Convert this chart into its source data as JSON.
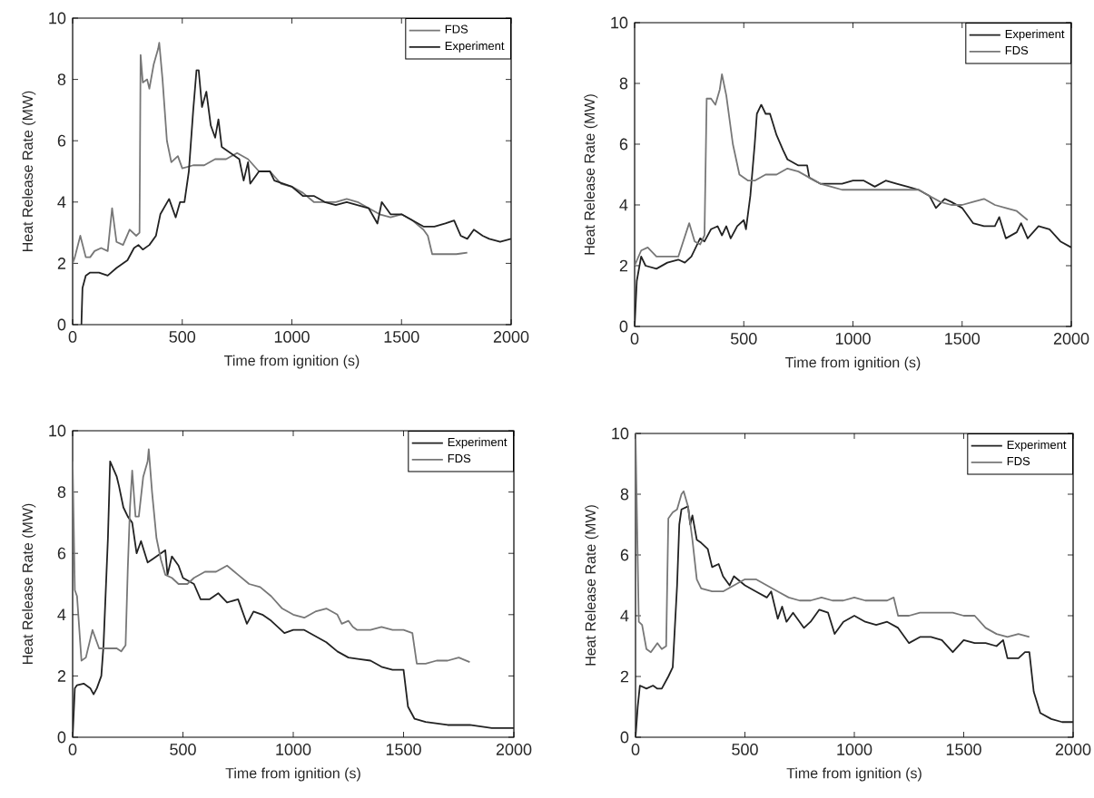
{
  "chart_data": [
    {
      "type": "line",
      "xlabel": "Time from ignition (s)",
      "ylabel": "Heat Release Rate (MW)",
      "xlim": [
        0,
        2000
      ],
      "ylim": [
        0,
        10
      ],
      "xticks": [
        0,
        500,
        1000,
        1500,
        2000
      ],
      "yticks": [
        0,
        2,
        4,
        6,
        8,
        10
      ],
      "legend": "top right",
      "series": [
        {
          "name": "FDS",
          "color": "#777777",
          "x": [
            0,
            10,
            35,
            60,
            80,
            100,
            130,
            160,
            180,
            200,
            230,
            260,
            290,
            305,
            310,
            320,
            340,
            350,
            370,
            390,
            395,
            410,
            430,
            450,
            480,
            500,
            550,
            600,
            650,
            700,
            750,
            800,
            850,
            900,
            950,
            1000,
            1050,
            1100,
            1150,
            1200,
            1250,
            1300,
            1350,
            1400,
            1450,
            1500,
            1550,
            1600,
            1620,
            1640,
            1700,
            1750,
            1800
          ],
          "values": [
            2.0,
            2.2,
            2.9,
            2.2,
            2.2,
            2.4,
            2.5,
            2.4,
            3.8,
            2.7,
            2.6,
            3.1,
            2.9,
            3.0,
            8.8,
            7.9,
            8.0,
            7.7,
            8.5,
            9.0,
            9.2,
            8.0,
            6.0,
            5.3,
            5.5,
            5.1,
            5.2,
            5.2,
            5.4,
            5.4,
            5.6,
            5.4,
            5.0,
            5.0,
            4.6,
            4.5,
            4.3,
            4.0,
            4.0,
            4.0,
            4.1,
            4.0,
            3.8,
            3.6,
            3.5,
            3.6,
            3.4,
            3.1,
            2.9,
            2.3,
            2.3,
            2.3,
            2.35
          ]
        },
        {
          "name": "Experiment",
          "color": "#222222",
          "x": [
            40,
            45,
            60,
            80,
            120,
            160,
            200,
            250,
            280,
            300,
            320,
            350,
            380,
            400,
            440,
            470,
            490,
            510,
            530,
            550,
            565,
            575,
            590,
            610,
            630,
            650,
            665,
            680,
            720,
            760,
            780,
            800,
            810,
            850,
            900,
            920,
            1000,
            1050,
            1100,
            1150,
            1200,
            1250,
            1300,
            1350,
            1390,
            1410,
            1450,
            1500,
            1550,
            1600,
            1650,
            1700,
            1740,
            1770,
            1800,
            1830,
            1870,
            1900,
            1950,
            2000
          ],
          "values": [
            0,
            1.2,
            1.6,
            1.7,
            1.7,
            1.6,
            1.85,
            2.1,
            2.5,
            2.6,
            2.45,
            2.6,
            2.9,
            3.6,
            4.1,
            3.5,
            4.0,
            4.0,
            5.0,
            7.0,
            8.3,
            8.3,
            7.1,
            7.6,
            6.5,
            6.1,
            6.7,
            5.8,
            5.6,
            5.4,
            4.7,
            5.3,
            4.6,
            5.0,
            5.0,
            4.7,
            4.5,
            4.2,
            4.2,
            4.0,
            3.9,
            4.0,
            3.9,
            3.8,
            3.3,
            4.0,
            3.6,
            3.6,
            3.4,
            3.2,
            3.2,
            3.3,
            3.4,
            2.9,
            2.8,
            3.1,
            2.9,
            2.8,
            2.7,
            2.8
          ]
        }
      ]
    },
    {
      "type": "line",
      "xlabel": "Time from ignition (s)",
      "ylabel": "Heat Release Rate (MW)",
      "xlim": [
        0,
        2000
      ],
      "ylim": [
        0,
        10
      ],
      "xticks": [
        0,
        500,
        1000,
        1500,
        2000
      ],
      "yticks": [
        0,
        2,
        4,
        6,
        8,
        10
      ],
      "legend": "top right",
      "series": [
        {
          "name": "Experiment",
          "color": "#222222",
          "x": [
            0,
            10,
            30,
            50,
            100,
            150,
            200,
            230,
            260,
            300,
            320,
            350,
            380,
            400,
            420,
            440,
            470,
            500,
            510,
            530,
            550,
            560,
            580,
            600,
            620,
            650,
            680,
            700,
            750,
            790,
            800,
            850,
            900,
            950,
            1000,
            1050,
            1100,
            1150,
            1200,
            1250,
            1300,
            1350,
            1380,
            1420,
            1450,
            1500,
            1550,
            1600,
            1650,
            1670,
            1700,
            1750,
            1770,
            1800,
            1850,
            1900,
            1950,
            2000
          ],
          "values": [
            0,
            1.5,
            2.3,
            2.0,
            1.9,
            2.1,
            2.2,
            2.1,
            2.3,
            2.9,
            2.8,
            3.2,
            3.3,
            3.0,
            3.3,
            2.9,
            3.3,
            3.5,
            3.2,
            4.3,
            6.0,
            7.0,
            7.3,
            7.0,
            7.0,
            6.3,
            5.8,
            5.5,
            5.3,
            5.3,
            4.9,
            4.7,
            4.7,
            4.7,
            4.8,
            4.8,
            4.6,
            4.8,
            4.7,
            4.6,
            4.5,
            4.3,
            3.9,
            4.2,
            4.1,
            3.9,
            3.4,
            3.3,
            3.3,
            3.6,
            2.9,
            3.1,
            3.4,
            2.9,
            3.3,
            3.2,
            2.8,
            2.6
          ]
        },
        {
          "name": "FDS",
          "color": "#777777",
          "x": [
            0,
            30,
            60,
            100,
            150,
            200,
            250,
            275,
            300,
            320,
            330,
            350,
            370,
            390,
            400,
            420,
            450,
            480,
            520,
            550,
            600,
            650,
            700,
            750,
            800,
            850,
            900,
            950,
            1000,
            1100,
            1200,
            1300,
            1350,
            1400,
            1450,
            1500,
            1550,
            1600,
            1650,
            1700,
            1750,
            1800
          ],
          "values": [
            2.0,
            2.5,
            2.6,
            2.3,
            2.3,
            2.3,
            3.4,
            2.8,
            2.7,
            3.0,
            7.5,
            7.5,
            7.3,
            7.8,
            8.3,
            7.6,
            6.0,
            5.0,
            4.8,
            4.8,
            5.0,
            5.0,
            5.2,
            5.1,
            4.9,
            4.7,
            4.6,
            4.5,
            4.5,
            4.5,
            4.5,
            4.5,
            4.3,
            4.1,
            4.0,
            4.0,
            4.1,
            4.2,
            4.0,
            3.9,
            3.8,
            3.5
          ]
        }
      ]
    },
    {
      "type": "line",
      "xlabel": "Time from ignition (s)",
      "ylabel": "Heat Release Rate (MW)",
      "xlim": [
        0,
        2000
      ],
      "ylim": [
        0,
        10
      ],
      "xticks": [
        0,
        500,
        1000,
        1500,
        2000
      ],
      "yticks": [
        0,
        2,
        4,
        6,
        8,
        10
      ],
      "legend": "top right",
      "series": [
        {
          "name": "Experiment",
          "color": "#222222",
          "x": [
            0,
            10,
            20,
            50,
            80,
            95,
            110,
            130,
            140,
            160,
            170,
            200,
            210,
            230,
            250,
            270,
            290,
            310,
            340,
            360,
            400,
            420,
            430,
            450,
            480,
            500,
            550,
            580,
            620,
            660,
            700,
            750,
            790,
            820,
            860,
            900,
            960,
            1000,
            1050,
            1100,
            1150,
            1200,
            1250,
            1300,
            1350,
            1400,
            1450,
            1500,
            1520,
            1550,
            1600,
            1700,
            1800,
            1900,
            2000
          ],
          "values": [
            0,
            1.6,
            1.7,
            1.75,
            1.6,
            1.4,
            1.6,
            2.0,
            3.0,
            6.5,
            9.0,
            8.5,
            8.2,
            7.5,
            7.2,
            7.0,
            6.0,
            6.4,
            5.7,
            5.8,
            6.0,
            6.1,
            5.3,
            5.9,
            5.6,
            5.2,
            5.0,
            4.5,
            4.5,
            4.7,
            4.4,
            4.5,
            3.7,
            4.1,
            4.0,
            3.8,
            3.4,
            3.5,
            3.5,
            3.3,
            3.1,
            2.8,
            2.6,
            2.55,
            2.5,
            2.3,
            2.2,
            2.2,
            1.0,
            0.6,
            0.5,
            0.4,
            0.4,
            0.3,
            0.3
          ]
        },
        {
          "name": "FDS",
          "color": "#777777",
          "x": [
            0,
            10,
            20,
            40,
            60,
            90,
            120,
            150,
            200,
            220,
            240,
            250,
            260,
            270,
            285,
            300,
            320,
            340,
            345,
            360,
            380,
            400,
            420,
            450,
            480,
            520,
            550,
            600,
            650,
            700,
            750,
            800,
            850,
            900,
            950,
            1000,
            1050,
            1100,
            1150,
            1200,
            1220,
            1250,
            1270,
            1290,
            1350,
            1400,
            1450,
            1500,
            1540,
            1560,
            1600,
            1650,
            1700,
            1750,
            1800
          ],
          "values": [
            9.0,
            4.8,
            4.6,
            2.5,
            2.6,
            3.5,
            2.9,
            2.9,
            2.9,
            2.8,
            3.0,
            5.5,
            7.5,
            8.7,
            7.2,
            7.2,
            8.5,
            9.0,
            9.4,
            8.0,
            6.5,
            5.8,
            5.3,
            5.2,
            5.0,
            5.0,
            5.2,
            5.4,
            5.4,
            5.6,
            5.3,
            5.0,
            4.9,
            4.6,
            4.2,
            4.0,
            3.9,
            4.1,
            4.2,
            4.0,
            3.7,
            3.8,
            3.6,
            3.5,
            3.5,
            3.6,
            3.5,
            3.5,
            3.4,
            2.4,
            2.4,
            2.5,
            2.5,
            2.6,
            2.45
          ]
        }
      ]
    },
    {
      "type": "line",
      "xlabel": "Time from ignition (s)",
      "ylabel": "Heat Release Rate (MW)",
      "xlim": [
        0,
        2000
      ],
      "ylim": [
        0,
        10
      ],
      "xticks": [
        0,
        500,
        1000,
        1500,
        2000
      ],
      "yticks": [
        0,
        2,
        4,
        6,
        8,
        10
      ],
      "legend": "top right",
      "series": [
        {
          "name": "Experiment",
          "color": "#222222",
          "x": [
            0,
            10,
            20,
            50,
            80,
            100,
            120,
            150,
            170,
            190,
            200,
            210,
            240,
            250,
            260,
            280,
            300,
            330,
            350,
            380,
            400,
            430,
            450,
            500,
            550,
            600,
            620,
            650,
            670,
            690,
            720,
            770,
            800,
            840,
            880,
            910,
            950,
            1000,
            1050,
            1100,
            1150,
            1200,
            1250,
            1300,
            1350,
            1400,
            1450,
            1500,
            1550,
            1600,
            1650,
            1680,
            1700,
            1750,
            1780,
            1800,
            1820,
            1850,
            1900,
            1950,
            2000
          ],
          "values": [
            0,
            1.0,
            1.7,
            1.6,
            1.7,
            1.6,
            1.6,
            2.0,
            2.3,
            5.0,
            7.0,
            7.5,
            7.6,
            7.0,
            7.3,
            6.5,
            6.4,
            6.2,
            5.6,
            5.7,
            5.3,
            5.0,
            5.3,
            5.0,
            4.8,
            4.6,
            4.8,
            3.9,
            4.3,
            3.8,
            4.1,
            3.6,
            3.8,
            4.2,
            4.1,
            3.4,
            3.8,
            4.0,
            3.8,
            3.7,
            3.8,
            3.6,
            3.1,
            3.3,
            3.3,
            3.2,
            2.8,
            3.2,
            3.1,
            3.1,
            3.0,
            3.2,
            2.6,
            2.6,
            2.8,
            2.8,
            1.5,
            0.8,
            0.6,
            0.5,
            0.5
          ]
        },
        {
          "name": "FDS",
          "color": "#777777",
          "x": [
            0,
            15,
            30,
            50,
            70,
            100,
            120,
            140,
            150,
            170,
            190,
            210,
            220,
            240,
            260,
            280,
            300,
            350,
            400,
            450,
            500,
            550,
            600,
            650,
            700,
            750,
            800,
            850,
            900,
            950,
            1000,
            1050,
            1100,
            1150,
            1180,
            1200,
            1250,
            1300,
            1350,
            1400,
            1450,
            1500,
            1550,
            1600,
            1650,
            1700,
            1750,
            1800
          ],
          "values": [
            10,
            3.8,
            3.7,
            2.9,
            2.8,
            3.1,
            2.9,
            3.0,
            7.2,
            7.4,
            7.5,
            8.0,
            8.1,
            7.6,
            6.5,
            5.2,
            4.9,
            4.8,
            4.8,
            5.0,
            5.2,
            5.2,
            5.0,
            4.8,
            4.6,
            4.5,
            4.5,
            4.6,
            4.5,
            4.5,
            4.6,
            4.5,
            4.5,
            4.5,
            4.6,
            4.0,
            4.0,
            4.1,
            4.1,
            4.1,
            4.1,
            4.0,
            4.0,
            3.6,
            3.4,
            3.3,
            3.4,
            3.3
          ]
        }
      ]
    }
  ]
}
